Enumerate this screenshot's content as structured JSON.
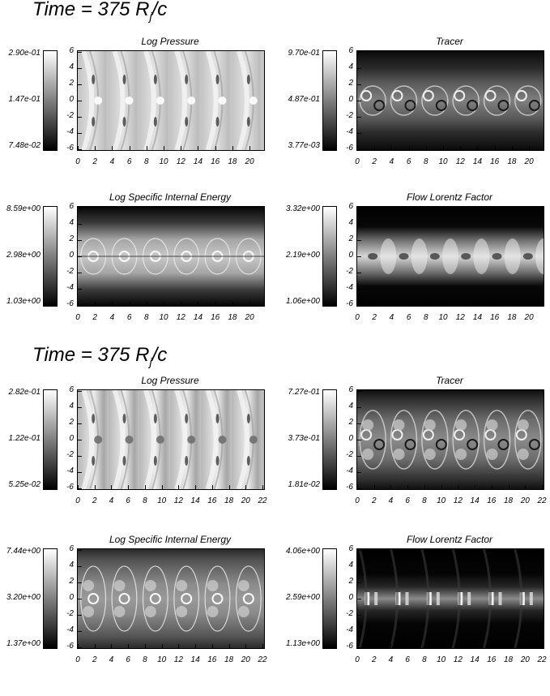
{
  "figure": {
    "sections": [
      {
        "title_main": "Time =  375  R",
        "title_sub": "j",
        "title_tail": "/c",
        "panels": [
          {
            "title": "Log Pressure",
            "cb_max": "2.90e-01",
            "cb_mid": "1.47e-01",
            "cb_min": "7.48e-02"
          },
          {
            "title": "Tracer",
            "cb_max": "9.70e-01",
            "cb_mid": "4.87e-01",
            "cb_min": "3.77e-03"
          },
          {
            "title": "Log Specific Internal Energy",
            "cb_max": "8.59e+00",
            "cb_mid": "2.98e+00",
            "cb_min": "1.03e+00"
          },
          {
            "title": "Flow Lorentz Factor",
            "cb_max": "3.32e+00",
            "cb_mid": "2.19e+00",
            "cb_min": "1.06e+00"
          }
        ],
        "x_ticks": [
          "0",
          "2",
          "4",
          "6",
          "8",
          "10",
          "12",
          "14",
          "16",
          "18",
          "20"
        ],
        "y_ticks": [
          "6",
          "4",
          "2",
          "0",
          "-2",
          "-4",
          "-6"
        ]
      },
      {
        "title_main": "Time =  375  R",
        "title_sub": "j",
        "title_tail": "/c",
        "panels": [
          {
            "title": "Log Pressure",
            "cb_max": "2.82e-01",
            "cb_mid": "1.22e-01",
            "cb_min": "5.25e-02"
          },
          {
            "title": "Tracer",
            "cb_max": "7.27e-01",
            "cb_mid": "3.73e-01",
            "cb_min": "1.81e-02"
          },
          {
            "title": "Log Specific Internal Energy",
            "cb_max": "7.44e+00",
            "cb_mid": "3.20e+00",
            "cb_min": "1.37e+00"
          },
          {
            "title": "Flow Lorentz Factor",
            "cb_max": "4.06e+00",
            "cb_mid": "2.59e+00",
            "cb_min": "1.13e+00"
          }
        ],
        "x_ticks": [
          "0",
          "2",
          "4",
          "6",
          "8",
          "10",
          "12",
          "14",
          "16",
          "18",
          "20",
          "22"
        ],
        "y_ticks": [
          "6",
          "4",
          "2",
          "0",
          "-2",
          "-4",
          "-6"
        ]
      }
    ]
  }
}
